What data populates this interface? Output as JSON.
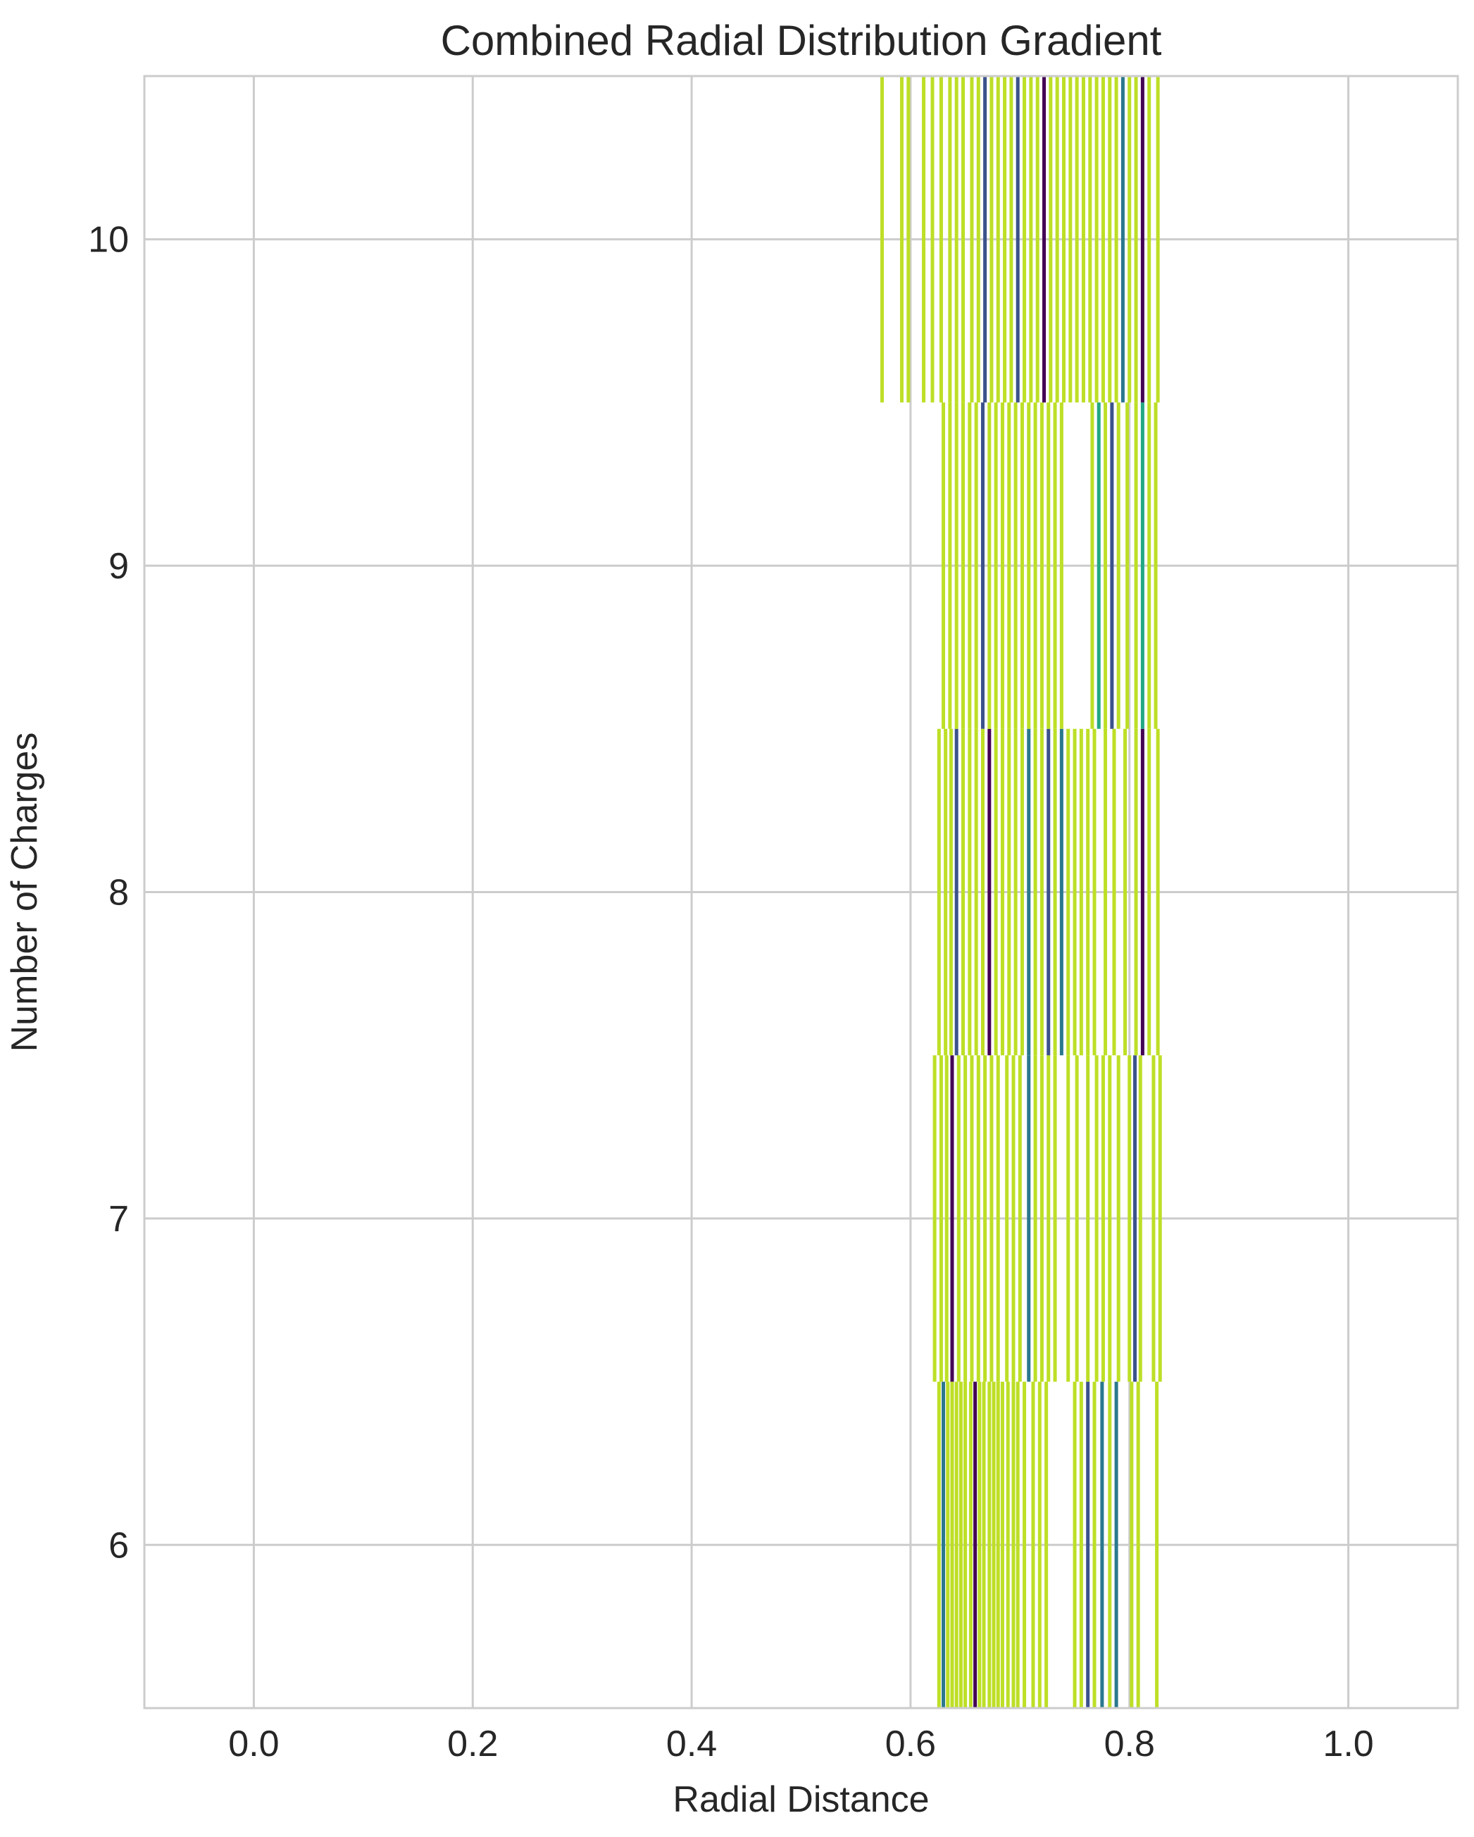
{
  "chart_data": {
    "type": "heatmap",
    "title": "Combined Radial Distribution Gradient",
    "xlabel": "Radial Distance",
    "ylabel": "Number of Charges",
    "xlim": [
      -0.1,
      1.1
    ],
    "ylim": [
      5.5,
      10.5
    ],
    "x_ticks": [
      "0.0",
      "0.2",
      "0.4",
      "0.6",
      "0.8",
      "1.0"
    ],
    "y_ticks": [
      "6",
      "7",
      "8",
      "9",
      "10"
    ],
    "grid": true,
    "colormap": "viridis",
    "colors": {
      "dominant": "#bddf26",
      "mid": "#2a788e",
      "teal": "#22a884",
      "dark": "#440154",
      "navy": "#3b528b",
      "grid": "#cccccc",
      "axis": "#cccccc"
    },
    "rows": [
      {
        "charges": 6,
        "lines": [
          {
            "x": 0.626,
            "c": "dominant"
          },
          {
            "x": 0.63,
            "c": "mid"
          },
          {
            "x": 0.634,
            "c": "dominant"
          },
          {
            "x": 0.638,
            "c": "dominant"
          },
          {
            "x": 0.642,
            "c": "dominant"
          },
          {
            "x": 0.646,
            "c": "dominant"
          },
          {
            "x": 0.65,
            "c": "dominant"
          },
          {
            "x": 0.655,
            "c": "dominant"
          },
          {
            "x": 0.659,
            "c": "dark"
          },
          {
            "x": 0.663,
            "c": "dominant"
          },
          {
            "x": 0.667,
            "c": "dominant"
          },
          {
            "x": 0.672,
            "c": "dominant"
          },
          {
            "x": 0.676,
            "c": "dominant"
          },
          {
            "x": 0.68,
            "c": "dominant"
          },
          {
            "x": 0.684,
            "c": "dominant"
          },
          {
            "x": 0.689,
            "c": "dominant"
          },
          {
            "x": 0.694,
            "c": "dominant"
          },
          {
            "x": 0.698,
            "c": "dominant"
          },
          {
            "x": 0.704,
            "c": "dominant"
          },
          {
            "x": 0.712,
            "c": "dominant"
          },
          {
            "x": 0.718,
            "c": "dominant"
          },
          {
            "x": 0.724,
            "c": "dominant"
          },
          {
            "x": 0.75,
            "c": "dominant"
          },
          {
            "x": 0.756,
            "c": "dominant"
          },
          {
            "x": 0.762,
            "c": "navy"
          },
          {
            "x": 0.768,
            "c": "dominant"
          },
          {
            "x": 0.775,
            "c": "mid"
          },
          {
            "x": 0.782,
            "c": "dominant"
          },
          {
            "x": 0.788,
            "c": "mid"
          },
          {
            "x": 0.802,
            "c": "dominant"
          },
          {
            "x": 0.808,
            "c": "dominant"
          },
          {
            "x": 0.825,
            "c": "dominant"
          }
        ]
      },
      {
        "charges": 7,
        "lines": [
          {
            "x": 0.622,
            "c": "dominant"
          },
          {
            "x": 0.628,
            "c": "dominant"
          },
          {
            "x": 0.633,
            "c": "dominant"
          },
          {
            "x": 0.638,
            "c": "dark"
          },
          {
            "x": 0.644,
            "c": "dominant"
          },
          {
            "x": 0.65,
            "c": "dominant"
          },
          {
            "x": 0.656,
            "c": "dominant"
          },
          {
            "x": 0.662,
            "c": "dominant"
          },
          {
            "x": 0.668,
            "c": "dominant"
          },
          {
            "x": 0.674,
            "c": "dominant"
          },
          {
            "x": 0.68,
            "c": "dominant"
          },
          {
            "x": 0.688,
            "c": "dominant"
          },
          {
            "x": 0.694,
            "c": "dominant"
          },
          {
            "x": 0.7,
            "c": "dominant"
          },
          {
            "x": 0.708,
            "c": "mid"
          },
          {
            "x": 0.714,
            "c": "dominant"
          },
          {
            "x": 0.72,
            "c": "dominant"
          },
          {
            "x": 0.726,
            "c": "dominant"
          },
          {
            "x": 0.732,
            "c": "dominant"
          },
          {
            "x": 0.744,
            "c": "dominant"
          },
          {
            "x": 0.752,
            "c": "dominant"
          },
          {
            "x": 0.762,
            "c": "dominant"
          },
          {
            "x": 0.77,
            "c": "dominant"
          },
          {
            "x": 0.776,
            "c": "dominant"
          },
          {
            "x": 0.782,
            "c": "dominant"
          },
          {
            "x": 0.79,
            "c": "dominant"
          },
          {
            "x": 0.8,
            "c": "dominant"
          },
          {
            "x": 0.805,
            "c": "navy"
          },
          {
            "x": 0.81,
            "c": "dominant"
          },
          {
            "x": 0.822,
            "c": "dominant"
          },
          {
            "x": 0.828,
            "c": "dominant"
          }
        ]
      },
      {
        "charges": 8,
        "lines": [
          {
            "x": 0.626,
            "c": "dominant"
          },
          {
            "x": 0.632,
            "c": "dominant"
          },
          {
            "x": 0.637,
            "c": "dominant"
          },
          {
            "x": 0.642,
            "c": "navy"
          },
          {
            "x": 0.648,
            "c": "dominant"
          },
          {
            "x": 0.654,
            "c": "dominant"
          },
          {
            "x": 0.66,
            "c": "dominant"
          },
          {
            "x": 0.666,
            "c": "dominant"
          },
          {
            "x": 0.672,
            "c": "dark"
          },
          {
            "x": 0.678,
            "c": "dominant"
          },
          {
            "x": 0.684,
            "c": "dominant"
          },
          {
            "x": 0.69,
            "c": "dominant"
          },
          {
            "x": 0.696,
            "c": "dominant"
          },
          {
            "x": 0.702,
            "c": "dominant"
          },
          {
            "x": 0.708,
            "c": "mid"
          },
          {
            "x": 0.714,
            "c": "dominant"
          },
          {
            "x": 0.72,
            "c": "dominant"
          },
          {
            "x": 0.726,
            "c": "navy"
          },
          {
            "x": 0.732,
            "c": "dominant"
          },
          {
            "x": 0.738,
            "c": "mid"
          },
          {
            "x": 0.744,
            "c": "dominant"
          },
          {
            "x": 0.75,
            "c": "dominant"
          },
          {
            "x": 0.756,
            "c": "dominant"
          },
          {
            "x": 0.762,
            "c": "dominant"
          },
          {
            "x": 0.768,
            "c": "dominant"
          },
          {
            "x": 0.778,
            "c": "dominant"
          },
          {
            "x": 0.786,
            "c": "dominant"
          },
          {
            "x": 0.796,
            "c": "dominant"
          },
          {
            "x": 0.806,
            "c": "dominant"
          },
          {
            "x": 0.812,
            "c": "dark"
          },
          {
            "x": 0.818,
            "c": "dominant"
          },
          {
            "x": 0.826,
            "c": "dominant"
          }
        ]
      },
      {
        "charges": 9,
        "lines": [
          {
            "x": 0.63,
            "c": "dominant"
          },
          {
            "x": 0.636,
            "c": "dominant"
          },
          {
            "x": 0.642,
            "c": "dominant"
          },
          {
            "x": 0.648,
            "c": "dominant"
          },
          {
            "x": 0.654,
            "c": "dominant"
          },
          {
            "x": 0.66,
            "c": "dominant"
          },
          {
            "x": 0.666,
            "c": "navy"
          },
          {
            "x": 0.672,
            "c": "dominant"
          },
          {
            "x": 0.678,
            "c": "dominant"
          },
          {
            "x": 0.684,
            "c": "dominant"
          },
          {
            "x": 0.69,
            "c": "dominant"
          },
          {
            "x": 0.696,
            "c": "dominant"
          },
          {
            "x": 0.702,
            "c": "dominant"
          },
          {
            "x": 0.708,
            "c": "dominant"
          },
          {
            "x": 0.714,
            "c": "dominant"
          },
          {
            "x": 0.72,
            "c": "dominant"
          },
          {
            "x": 0.726,
            "c": "dominant"
          },
          {
            "x": 0.732,
            "c": "dominant"
          },
          {
            "x": 0.738,
            "c": "dominant"
          },
          {
            "x": 0.766,
            "c": "dominant"
          },
          {
            "x": 0.772,
            "c": "teal"
          },
          {
            "x": 0.778,
            "c": "dominant"
          },
          {
            "x": 0.784,
            "c": "navy"
          },
          {
            "x": 0.79,
            "c": "dominant"
          },
          {
            "x": 0.798,
            "c": "dominant"
          },
          {
            "x": 0.806,
            "c": "dominant"
          },
          {
            "x": 0.812,
            "c": "teal"
          },
          {
            "x": 0.818,
            "c": "dominant"
          },
          {
            "x": 0.824,
            "c": "dominant"
          }
        ]
      },
      {
        "charges": 10,
        "lines": [
          {
            "x": 0.574,
            "c": "dominant"
          },
          {
            "x": 0.592,
            "c": "dominant"
          },
          {
            "x": 0.598,
            "c": "dominant"
          },
          {
            "x": 0.612,
            "c": "dominant"
          },
          {
            "x": 0.62,
            "c": "dominant"
          },
          {
            "x": 0.628,
            "c": "dominant"
          },
          {
            "x": 0.636,
            "c": "dominant"
          },
          {
            "x": 0.642,
            "c": "dominant"
          },
          {
            "x": 0.648,
            "c": "dominant"
          },
          {
            "x": 0.656,
            "c": "dominant"
          },
          {
            "x": 0.662,
            "c": "dominant"
          },
          {
            "x": 0.668,
            "c": "navy"
          },
          {
            "x": 0.674,
            "c": "dominant"
          },
          {
            "x": 0.68,
            "c": "dominant"
          },
          {
            "x": 0.686,
            "c": "dominant"
          },
          {
            "x": 0.692,
            "c": "dominant"
          },
          {
            "x": 0.698,
            "c": "navy"
          },
          {
            "x": 0.704,
            "c": "dominant"
          },
          {
            "x": 0.71,
            "c": "dominant"
          },
          {
            "x": 0.716,
            "c": "dominant"
          },
          {
            "x": 0.722,
            "c": "dark"
          },
          {
            "x": 0.728,
            "c": "dominant"
          },
          {
            "x": 0.734,
            "c": "dominant"
          },
          {
            "x": 0.74,
            "c": "dominant"
          },
          {
            "x": 0.746,
            "c": "dominant"
          },
          {
            "x": 0.752,
            "c": "dominant"
          },
          {
            "x": 0.758,
            "c": "dominant"
          },
          {
            "x": 0.764,
            "c": "dominant"
          },
          {
            "x": 0.77,
            "c": "dominant"
          },
          {
            "x": 0.776,
            "c": "dominant"
          },
          {
            "x": 0.782,
            "c": "dominant"
          },
          {
            "x": 0.788,
            "c": "dominant"
          },
          {
            "x": 0.794,
            "c": "mid"
          },
          {
            "x": 0.8,
            "c": "dominant"
          },
          {
            "x": 0.806,
            "c": "dominant"
          },
          {
            "x": 0.812,
            "c": "dark"
          },
          {
            "x": 0.818,
            "c": "dominant"
          },
          {
            "x": 0.826,
            "c": "dominant"
          }
        ]
      }
    ]
  }
}
